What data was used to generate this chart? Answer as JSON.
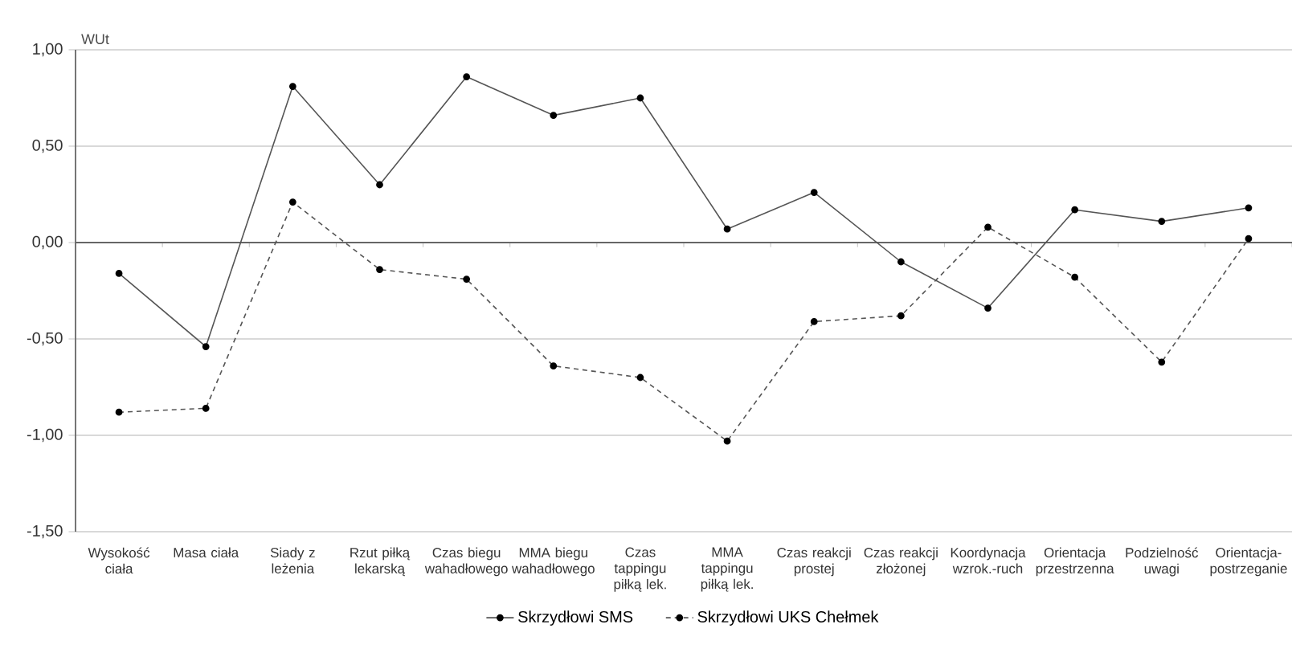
{
  "chart_data": {
    "type": "line",
    "ylabel": "WUt",
    "categories": [
      "Wysokość ciała",
      "Masa ciała",
      "Siady z leżenia",
      "Rzut piłką lekarską",
      "Czas biegu wahadłowego",
      "MMA biegu wahadłowego",
      "Czas tappingu piłką lek.",
      "MMA tappingu piłką lek.",
      "Czas reakcji prostej",
      "Czas reakcji złożonej",
      "Koordynacja wzrok.-ruch",
      "Orientacja przestrzenna",
      "Podzielność uwagi",
      "Orientacja-postrzeganie"
    ],
    "series": [
      {
        "name": "Skrzydłowi SMS",
        "color": "#555555",
        "line_style": "solid",
        "values": [
          -0.16,
          -0.54,
          0.81,
          0.3,
          0.86,
          0.66,
          0.75,
          0.07,
          0.26,
          -0.1,
          -0.34,
          0.17,
          0.11,
          0.18
        ]
      },
      {
        "name": "Skrzydłowi UKS Chełmek",
        "color": "#555555",
        "line_style": "dashed",
        "values": [
          -0.88,
          -0.86,
          0.21,
          -0.14,
          -0.19,
          -0.64,
          -0.7,
          -1.03,
          -0.41,
          -0.38,
          0.08,
          -0.18,
          -0.62,
          0.02
        ]
      }
    ],
    "ylim": [
      -1.5,
      1.0
    ],
    "yticks": [
      {
        "value": -1.5,
        "label": "-1,50"
      },
      {
        "value": -1.0,
        "label": "-1,00"
      },
      {
        "value": -0.5,
        "label": "-0,50"
      },
      {
        "value": 0.0,
        "label": "0,00"
      },
      {
        "value": 0.5,
        "label": "0,50"
      },
      {
        "value": 1.0,
        "label": "1,00"
      }
    ],
    "grid": "y",
    "legend": "bottom",
    "marker": "circle"
  }
}
